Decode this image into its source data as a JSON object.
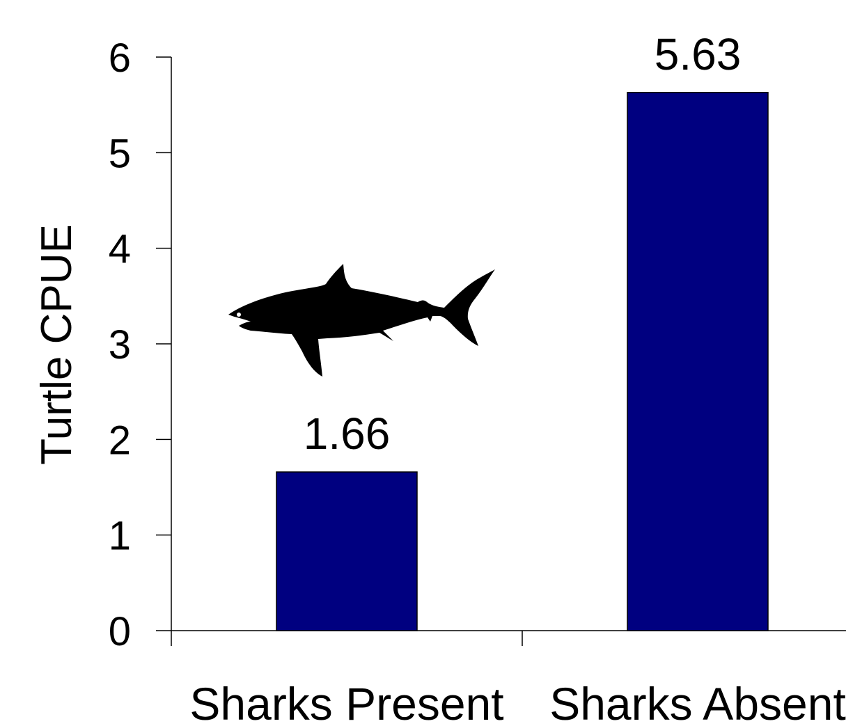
{
  "chart_data": {
    "type": "bar",
    "categories": [
      "Sharks Present",
      "Sharks Absent"
    ],
    "values": [
      1.66,
      5.63
    ],
    "data_labels": [
      "1.66",
      "5.63"
    ],
    "title": "",
    "xlabel": "",
    "ylabel": "Turtle CPUE",
    "ylim": [
      0,
      6
    ],
    "yticks": [
      "0",
      "1",
      "2",
      "3",
      "4",
      "5",
      "6"
    ],
    "grid": false,
    "legend": "none",
    "bar_color": "#000080",
    "illustration": "shark-silhouette"
  }
}
